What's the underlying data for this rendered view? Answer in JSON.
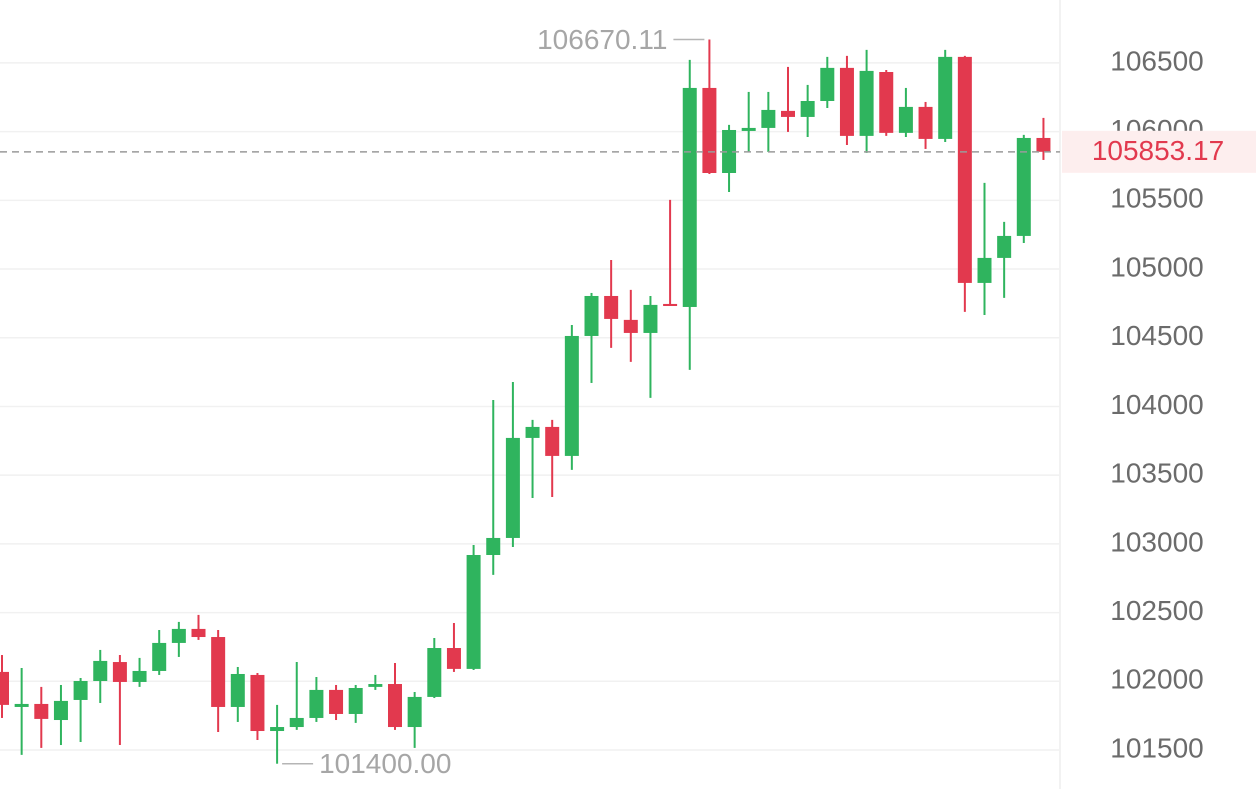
{
  "chart_data": {
    "type": "candlestick",
    "up_color": "#2fb45e",
    "down_color": "#e2394e",
    "grid": true,
    "ylim": [
      101216,
      106958
    ],
    "yticks": [
      101500,
      102000,
      102500,
      103000,
      103500,
      104000,
      104500,
      105000,
      105500,
      106000,
      106500
    ],
    "open": [
      102068,
      101813,
      101835,
      101718,
      101864,
      102002,
      102140,
      101995,
      102075,
      102279,
      102381,
      102322,
      101813,
      102046,
      101638,
      101667,
      101733,
      101937,
      101762,
      101959,
      101980,
      101667,
      101886,
      102242,
      102090,
      102919,
      103043,
      103771,
      103851,
      103640,
      104513,
      104804,
      104630,
      104535,
      104746,
      104724,
      106318,
      105699,
      106005,
      106027,
      106151,
      106107,
      106223,
      106464,
      105969,
      106434,
      105991,
      106180,
      105947,
      106544,
      104899,
      105081,
      105241,
      105954
    ],
    "high": [
      102191,
      102097,
      101959,
      101973,
      102024,
      102228,
      102191,
      102170,
      102373,
      102432,
      102483,
      102373,
      102104,
      102060,
      101828,
      102140,
      102031,
      101973,
      101973,
      102046,
      102133,
      101922,
      102315,
      102424,
      102992,
      104047,
      104178,
      103902,
      103902,
      104593,
      104826,
      105066,
      104848,
      104804,
      105503,
      106522,
      106670.11,
      106049,
      106289,
      106289,
      106471,
      106340,
      106544,
      106551,
      106595,
      106449,
      106318,
      106216,
      106595,
      106551,
      105627,
      105343,
      105976,
      106100
    ],
    "low": [
      101733,
      101464,
      101515,
      101536,
      101558,
      101842,
      101536,
      101959,
      102046,
      102177,
      102301,
      101631,
      101704,
      101573,
      101400,
      101646,
      101704,
      101718,
      101697,
      101937,
      101646,
      101515,
      101878,
      102068,
      102082,
      102774,
      102977,
      103334,
      103341,
      103538,
      104171,
      104426,
      104324,
      104062,
      104731,
      104266,
      105692,
      105561,
      105852,
      105852,
      105998,
      105961,
      106172,
      105903,
      105845,
      105969,
      105961,
      105874,
      105925,
      104688,
      104666,
      104790,
      105190,
      105794
    ],
    "close": [
      101828,
      101835,
      101726,
      101857,
      102002,
      102148,
      101995,
      102075,
      102279,
      102381,
      102322,
      101813,
      102053,
      101638,
      101667,
      101733,
      101937,
      101762,
      101951,
      101980,
      101667,
      101886,
      102242,
      102090,
      102919,
      103043,
      103771,
      103851,
      103640,
      104513,
      104804,
      104637,
      104535,
      104739,
      104731,
      106318,
      105699,
      106012,
      106027,
      106158,
      106107,
      106223,
      106464,
      105969,
      106442,
      105991,
      106180,
      105947,
      106544,
      104899,
      105081,
      105241,
      105954,
      105853.17
    ],
    "max_label": {
      "value": 106670.11,
      "label": "106670.11"
    },
    "min_label": {
      "value": 101400,
      "label": "101400.00"
    },
    "last_price": {
      "value": 105853.17,
      "label": "105853.17"
    }
  }
}
